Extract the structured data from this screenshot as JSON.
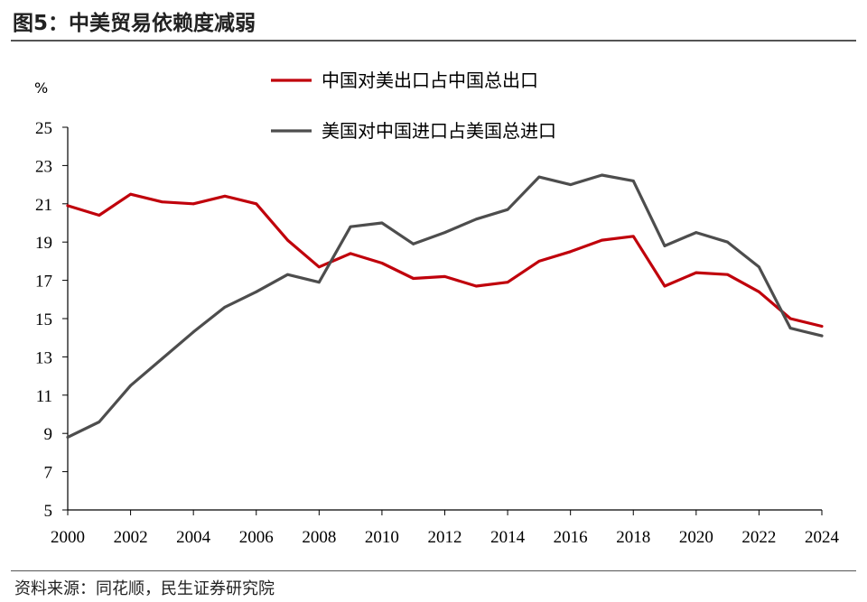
{
  "figure_title": "图5：中美贸易依赖度减弱",
  "source_text": "资料来源：同花顺，民生证券研究院",
  "chart_data": {
    "type": "line",
    "unit_label": "%",
    "x": [
      2000,
      2001,
      2002,
      2003,
      2004,
      2005,
      2006,
      2007,
      2008,
      2009,
      2010,
      2011,
      2012,
      2013,
      2014,
      2015,
      2016,
      2017,
      2018,
      2019,
      2020,
      2021,
      2022,
      2023,
      2024
    ],
    "x_ticks": [
      "2000",
      "2002",
      "2004",
      "2006",
      "2008",
      "2010",
      "2012",
      "2014",
      "2016",
      "2018",
      "2020",
      "2022",
      "2024"
    ],
    "ylim": [
      5,
      25
    ],
    "y_ticks": [
      "5",
      "7",
      "9",
      "11",
      "13",
      "15",
      "17",
      "19",
      "21",
      "23",
      "25"
    ],
    "legend_position": "top-right",
    "grid": false,
    "series": [
      {
        "name": "中国对美出口占中国总出口",
        "color": "#c0000b",
        "values": [
          20.9,
          20.4,
          21.5,
          21.1,
          21.0,
          21.4,
          21.0,
          19.1,
          17.7,
          18.4,
          17.9,
          17.1,
          17.2,
          16.7,
          16.9,
          18.0,
          18.5,
          19.1,
          19.3,
          16.7,
          17.4,
          17.3,
          16.4,
          15.0,
          14.6
        ]
      },
      {
        "name": "美国对中国进口占美国总进口",
        "color": "#4d4d4d",
        "values": [
          8.8,
          9.6,
          11.5,
          12.9,
          14.3,
          15.6,
          16.4,
          17.3,
          16.9,
          19.8,
          20.0,
          18.9,
          19.5,
          20.2,
          20.7,
          22.4,
          22.0,
          22.5,
          22.2,
          18.8,
          19.5,
          19.0,
          17.7,
          14.5,
          14.1
        ]
      }
    ]
  }
}
